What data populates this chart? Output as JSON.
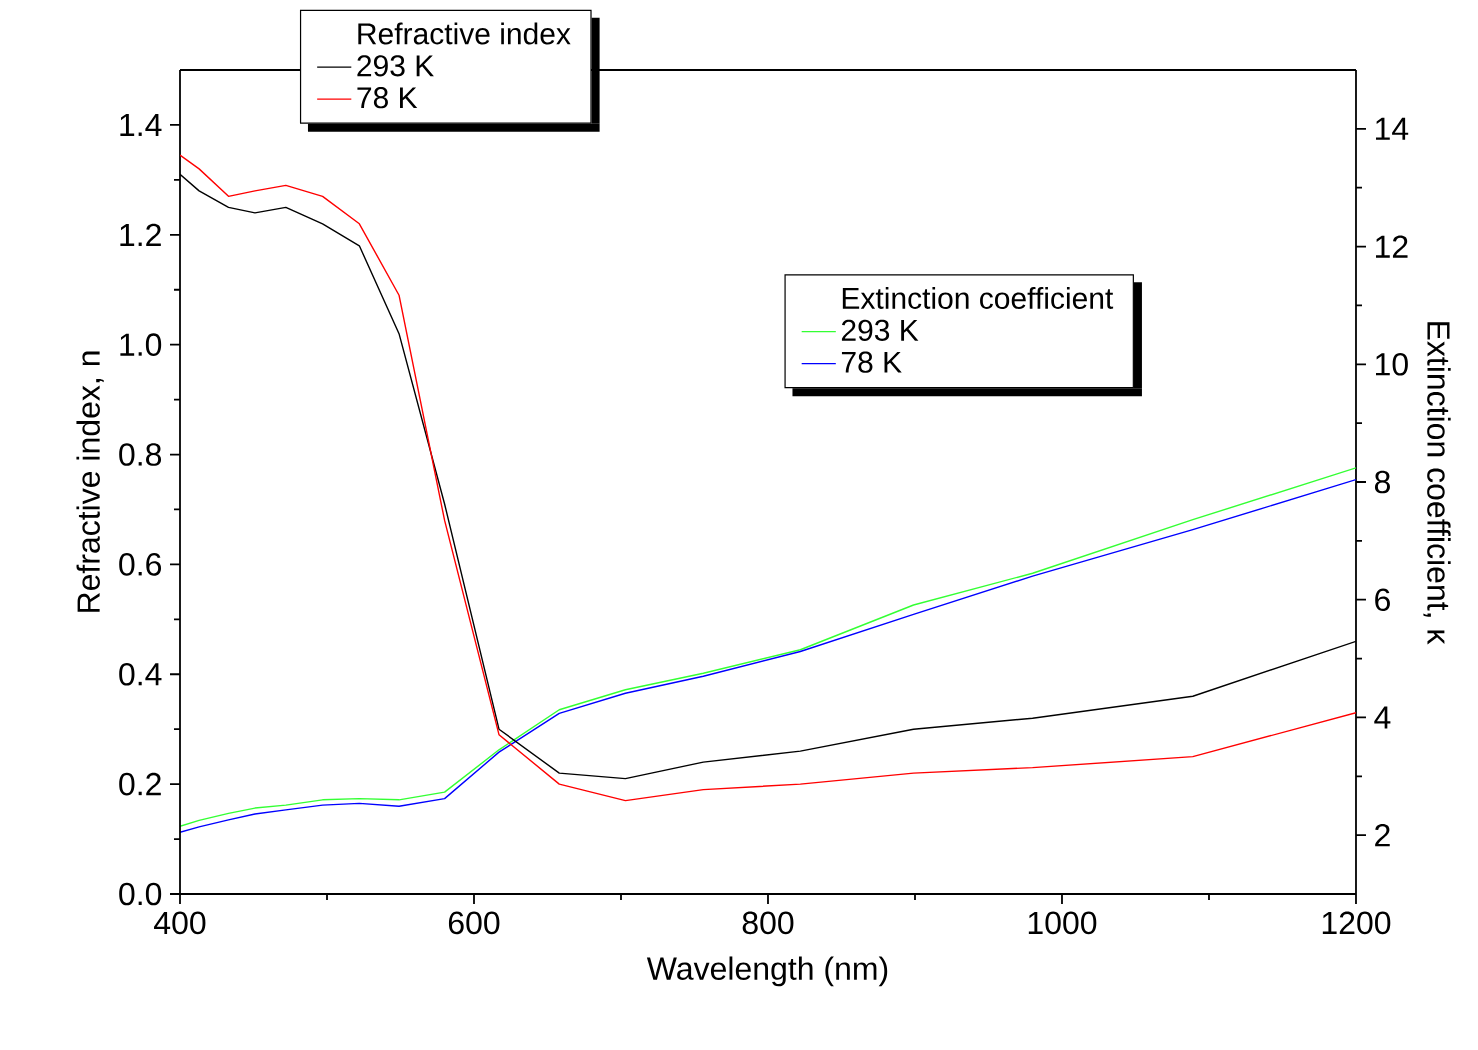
{
  "chart_data": {
    "type": "line",
    "xlabel": "Wavelength (nm)",
    "ylabel": "Refractive index, n",
    "y2label": "Extinction coefficient, κ",
    "x": [
      400,
      413,
      433,
      451,
      472,
      497,
      522,
      549,
      580,
      617,
      658,
      703,
      756,
      822,
      899,
      980,
      1089,
      1200
    ],
    "series": [
      {
        "name": "293 K",
        "color": "#000000",
        "values": [
          1.31,
          1.28,
          1.25,
          1.24,
          1.25,
          1.22,
          1.18,
          1.02,
          0.71,
          0.3,
          0.22,
          0.21,
          0.24,
          0.26,
          0.3,
          0.32,
          0.36,
          0.46
        ]
      },
      {
        "name": "78 K",
        "color": "#ff0000",
        "values": [
          1.345,
          1.32,
          1.27,
          1.28,
          1.29,
          1.27,
          1.22,
          1.09,
          0.68,
          0.29,
          0.2,
          0.17,
          0.19,
          0.2,
          0.22,
          0.23,
          0.25,
          0.33
        ]
      },
      {
        "name": "293 K",
        "color": "#33ff33",
        "axis": "y2",
        "values": [
          2.15,
          2.25,
          2.37,
          2.46,
          2.51,
          2.6,
          2.62,
          2.6,
          2.73,
          3.45,
          4.13,
          4.47,
          4.75,
          5.15,
          5.91,
          6.45,
          7.36,
          8.24
        ]
      },
      {
        "name": "78 K",
        "color": "#0000ff",
        "axis": "y2",
        "values": [
          2.05,
          2.14,
          2.26,
          2.36,
          2.43,
          2.51,
          2.54,
          2.49,
          2.62,
          3.41,
          4.07,
          4.41,
          4.7,
          5.12,
          5.75,
          6.4,
          7.19,
          8.04
        ]
      }
    ],
    "annotations": [
      "Refractive index",
      "Extinction coefficient"
    ],
    "xlim": [
      400,
      1200
    ],
    "xticks": [
      400,
      600,
      800,
      1000,
      1200
    ],
    "ylim": [
      0,
      1.5
    ],
    "yticks": [
      {
        "value": 0,
        "label": "0.0"
      },
      0.2,
      0.4,
      0.6,
      0.8,
      {
        "value": 1,
        "label": "1.0"
      },
      1.2,
      1.4
    ],
    "y2lim": [
      1,
      15
    ],
    "y2ticks": [
      2,
      4,
      6,
      8,
      10,
      12,
      14
    ],
    "legend": "top",
    "grid": false,
    "marker": "none",
    "line_style": "solid"
  }
}
